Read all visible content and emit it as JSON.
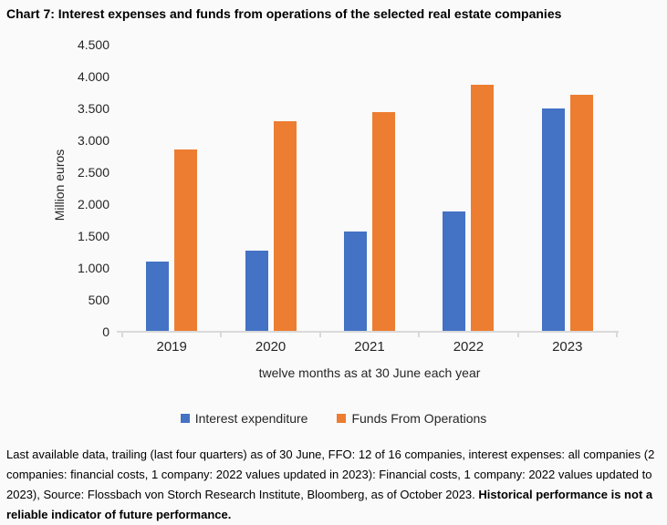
{
  "title": "Chart 7: Interest expenses and funds from operations of the selected real estate companies",
  "chart_data": {
    "type": "bar",
    "categories": [
      "2019",
      "2020",
      "2021",
      "2022",
      "2023"
    ],
    "series": [
      {
        "name": "Interest expenditure",
        "color": "#4472C4",
        "values": [
          1100,
          1270,
          1570,
          1890,
          3500
        ]
      },
      {
        "name": "Funds From Operations",
        "color": "#ED7D31",
        "values": [
          2860,
          3300,
          3440,
          3870,
          3710
        ]
      }
    ],
    "title": "Chart 7: Interest expenses and funds from operations of the selected real estate companies",
    "xlabel": "twelve months as at 30 June each year",
    "ylabel": "Million euros",
    "ylim": [
      0,
      4500
    ],
    "ytick_step": 500,
    "ytick_labels": [
      "0",
      "500",
      "1.000",
      "1.500",
      "2.000",
      "2.500",
      "3.000",
      "3.500",
      "4.000",
      "4.500"
    ],
    "grid": false,
    "legend_position": "bottom"
  },
  "footer": {
    "text": "Last available data, trailing (last four quarters) as of 30 June, FFO: 12 of 16 companies, interest expenses: all companies (2 companies: financial costs, 1 company: 2022 values updated in 2023): Financial costs, 1 company: 2022 values updated to 2023), Source: Flossbach von Storch Research Institute, Bloomberg, as of October 2023. ",
    "bold_text": "Historical performance is not a reliable indicator of future performance."
  },
  "colors": {
    "background": "#FAFAFA",
    "axis_line": "#D9D9D9",
    "text": "#262626",
    "series1": "#4472C4",
    "series2": "#ED7D31"
  }
}
